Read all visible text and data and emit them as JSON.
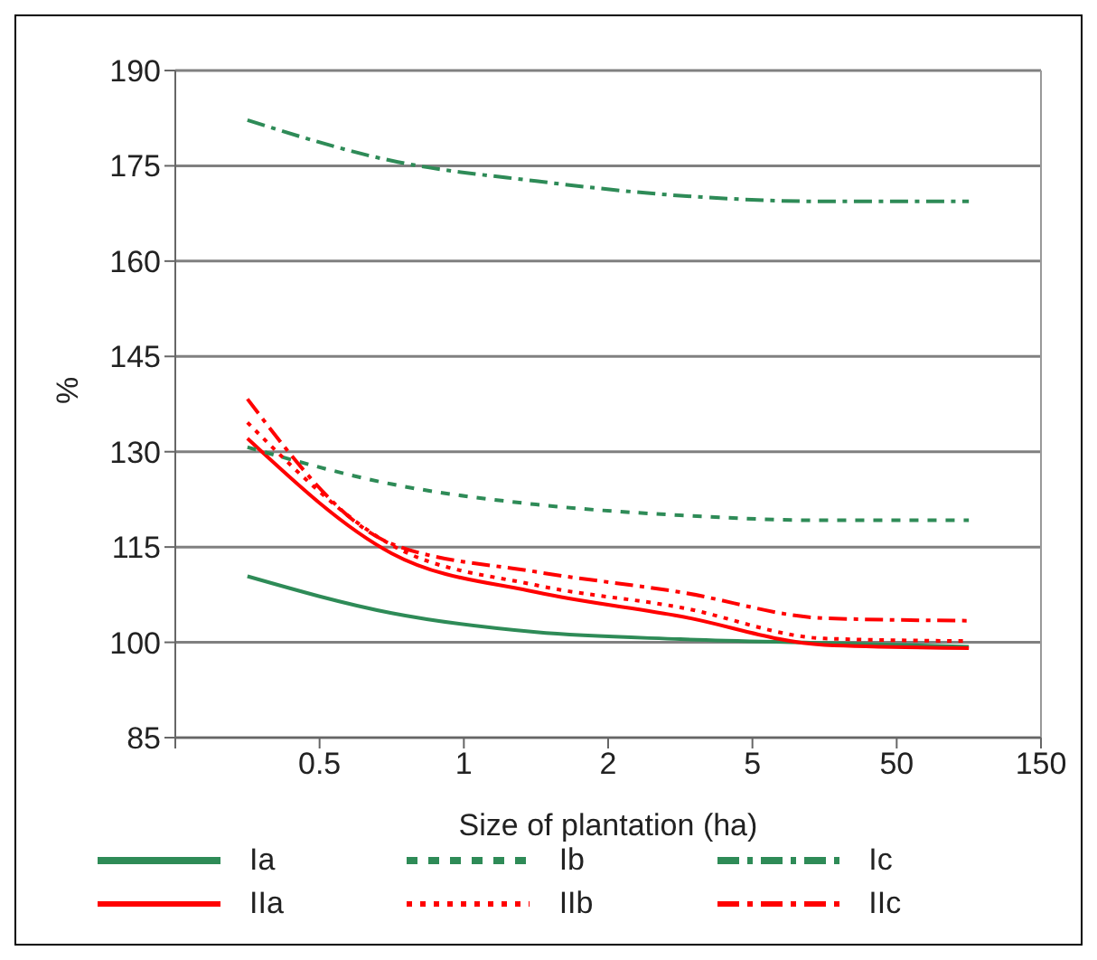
{
  "chart_data": {
    "type": "line",
    "xlabel": "Size of plantation (ha)",
    "ylabel": "%",
    "categories": [
      null,
      null,
      "0.5",
      null,
      "1",
      null,
      "2",
      null,
      "5",
      null,
      "50",
      null,
      "150"
    ],
    "ylim": [
      85,
      190
    ],
    "yticks": [
      85,
      100,
      115,
      130,
      145,
      160,
      175,
      190
    ],
    "grid": "y",
    "legend": "bottom",
    "series": [
      {
        "name": "Ia",
        "color": "#2e8b57",
        "line_style": "solid",
        "values": [
          null,
          110.4,
          null,
          104.6,
          null,
          101.6,
          null,
          100.5,
          null,
          99.9,
          null,
          99.3,
          null
        ]
      },
      {
        "name": "IIa",
        "color": "#ff0000",
        "line_style": "solid",
        "values": [
          null,
          132.1,
          null,
          114.0,
          null,
          107.9,
          null,
          104.1,
          null,
          99.6,
          null,
          99.1,
          null
        ]
      },
      {
        "name": "Ib",
        "color": "#2e8b57",
        "line_style": "dashed",
        "values": [
          null,
          130.7,
          null,
          124.9,
          null,
          121.7,
          null,
          120.0,
          null,
          119.2,
          null,
          119.2,
          null
        ]
      },
      {
        "name": "IIb",
        "color": "#ff0000",
        "line_style": "dotted",
        "values": [
          null,
          134.6,
          null,
          115.3,
          null,
          109.0,
          null,
          105.5,
          null,
          100.6,
          null,
          100.2,
          null
        ]
      },
      {
        "name": "Ic",
        "color": "#2e8b57",
        "line_style": "dashdot",
        "values": [
          null,
          182.2,
          null,
          175.8,
          null,
          172.6,
          null,
          170.3,
          null,
          169.4,
          null,
          169.4,
          null
        ]
      },
      {
        "name": "IIc",
        "color": "#ff0000",
        "line_style": "dashdot",
        "values": [
          null,
          138.3,
          null,
          115.5,
          null,
          111.1,
          null,
          107.9,
          null,
          103.8,
          null,
          103.4,
          null
        ]
      }
    ]
  }
}
